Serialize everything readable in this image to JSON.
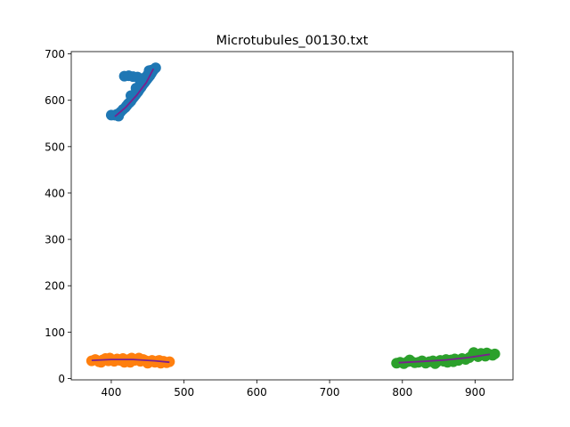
{
  "chart_data": {
    "type": "scatter",
    "title": "Microtubules_00130.txt",
    "xlabel": "",
    "ylabel": "",
    "xlim": [
      345,
      952
    ],
    "ylim": [
      -3,
      705
    ],
    "xticks": [
      400,
      500,
      600,
      700,
      800,
      900
    ],
    "yticks": [
      0,
      100,
      200,
      300,
      400,
      500,
      600,
      700
    ],
    "grid": false,
    "series": [
      {
        "color": "#1f77b4",
        "points": [
          [
            405,
            568
          ],
          [
            408,
            570
          ],
          [
            411,
            572
          ],
          [
            413,
            575
          ],
          [
            416,
            580
          ],
          [
            419,
            584
          ],
          [
            421,
            588
          ],
          [
            423,
            592
          ],
          [
            425,
            595
          ],
          [
            427,
            598
          ],
          [
            429,
            603
          ],
          [
            431,
            607
          ],
          [
            433,
            611
          ],
          [
            435,
            615
          ],
          [
            437,
            619
          ],
          [
            439,
            624
          ],
          [
            441,
            628
          ],
          [
            443,
            633
          ],
          [
            445,
            637
          ],
          [
            447,
            641
          ],
          [
            449,
            645
          ],
          [
            451,
            649
          ],
          [
            453,
            653
          ],
          [
            455,
            658
          ],
          [
            457,
            663
          ],
          [
            459,
            667
          ],
          [
            461,
            670
          ],
          [
            418,
            652
          ],
          [
            424,
            653
          ],
          [
            430,
            651
          ],
          [
            436,
            650
          ],
          [
            445,
            648
          ],
          [
            450,
            655
          ],
          [
            455,
            665
          ],
          [
            452,
            664
          ],
          [
            400,
            568
          ],
          [
            410,
            566
          ],
          [
            440,
            640
          ],
          [
            434,
            626
          ],
          [
            427,
            610
          ]
        ],
        "fit": [
          [
            405,
            565
          ],
          [
            420,
            585
          ],
          [
            435,
            611
          ],
          [
            448,
            638
          ],
          [
            458,
            668
          ]
        ]
      },
      {
        "color": "#ff7f0e",
        "points": [
          [
            373,
            38
          ],
          [
            378,
            41
          ],
          [
            383,
            36
          ],
          [
            388,
            40
          ],
          [
            392,
            43
          ],
          [
            396,
            38
          ],
          [
            400,
            41
          ],
          [
            404,
            37
          ],
          [
            408,
            42
          ],
          [
            412,
            39
          ],
          [
            416,
            43
          ],
          [
            420,
            38
          ],
          [
            424,
            41
          ],
          [
            428,
            44
          ],
          [
            432,
            39
          ],
          [
            436,
            42
          ],
          [
            440,
            37
          ],
          [
            444,
            41
          ],
          [
            448,
            38
          ],
          [
            452,
            35
          ],
          [
            456,
            39
          ],
          [
            460,
            35
          ],
          [
            464,
            38
          ],
          [
            468,
            33
          ],
          [
            472,
            37
          ],
          [
            476,
            34
          ],
          [
            480,
            36
          ],
          [
            386,
            35
          ],
          [
            398,
            44
          ],
          [
            418,
            35
          ],
          [
            438,
            44
          ],
          [
            450,
            33
          ],
          [
            466,
            39
          ],
          [
            426,
            35
          ]
        ],
        "fit": [
          [
            373,
            39
          ],
          [
            400,
            41
          ],
          [
            430,
            41
          ],
          [
            460,
            38
          ],
          [
            480,
            35
          ]
        ]
      },
      {
        "color": "#2ca02c",
        "points": [
          [
            792,
            33
          ],
          [
            797,
            35
          ],
          [
            802,
            32
          ],
          [
            807,
            36
          ],
          [
            812,
            37
          ],
          [
            817,
            34
          ],
          [
            822,
            35
          ],
          [
            827,
            38
          ],
          [
            832,
            33
          ],
          [
            837,
            36
          ],
          [
            842,
            38
          ],
          [
            847,
            35
          ],
          [
            852,
            39
          ],
          [
            857,
            37
          ],
          [
            862,
            35
          ],
          [
            867,
            40
          ],
          [
            872,
            42
          ],
          [
            877,
            39
          ],
          [
            882,
            43
          ],
          [
            887,
            41
          ],
          [
            892,
            45
          ],
          [
            896,
            50
          ],
          [
            900,
            52
          ],
          [
            904,
            47
          ],
          [
            908,
            54
          ],
          [
            912,
            51
          ],
          [
            916,
            55
          ],
          [
            920,
            52
          ],
          [
            924,
            50
          ],
          [
            927,
            53
          ],
          [
            810,
            40
          ],
          [
            845,
            32
          ],
          [
            870,
            36
          ],
          [
            898,
            56
          ],
          [
            914,
            48
          ],
          [
            860,
            41
          ]
        ],
        "fit": [
          [
            795,
            34
          ],
          [
            830,
            37
          ],
          [
            860,
            40
          ],
          [
            890,
            45
          ],
          [
            920,
            52
          ]
        ]
      }
    ],
    "fit_color": "#7b1f8f"
  }
}
